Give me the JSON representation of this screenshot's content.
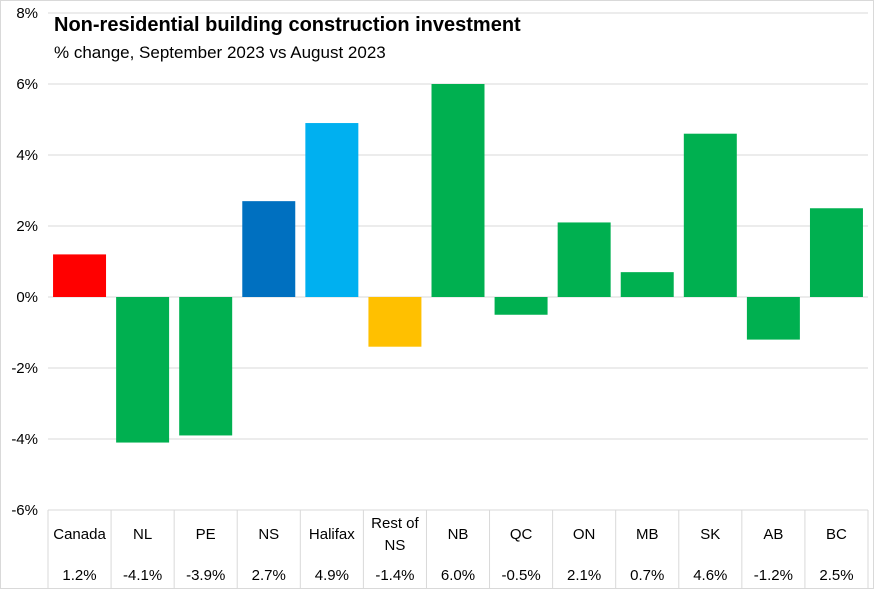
{
  "chart_data": {
    "type": "bar",
    "title": "Non-residential building construction investment",
    "subtitle": "% change, September 2023 vs August 2023",
    "categories": [
      [
        "Canada"
      ],
      [
        "NL"
      ],
      [
        "PE"
      ],
      [
        "NS"
      ],
      [
        "Halifax"
      ],
      [
        "Rest of",
        "NS"
      ],
      [
        "NB"
      ],
      [
        "QC"
      ],
      [
        "ON"
      ],
      [
        "MB"
      ],
      [
        "SK"
      ],
      [
        "AB"
      ],
      [
        "BC"
      ]
    ],
    "values": [
      1.2,
      -4.1,
      -3.9,
      2.7,
      4.9,
      -1.4,
      6.0,
      -0.5,
      2.1,
      0.7,
      4.6,
      -1.2,
      2.5
    ],
    "value_labels": [
      "1.2%",
      "-4.1%",
      "-3.9%",
      "2.7%",
      "4.9%",
      "-1.4%",
      "6.0%",
      "-0.5%",
      "2.1%",
      "0.7%",
      "4.6%",
      "-1.2%",
      "2.5%"
    ],
    "colors": [
      "#ff0000",
      "#00b050",
      "#00b050",
      "#0070c0",
      "#00b0f0",
      "#ffc000",
      "#00b050",
      "#00b050",
      "#00b050",
      "#00b050",
      "#00b050",
      "#00b050",
      "#00b050"
    ],
    "ylim": [
      -6,
      8
    ],
    "yticks": [
      -6,
      -4,
      -2,
      0,
      2,
      4,
      6,
      8
    ],
    "ytick_labels": [
      "-6%",
      "-4%",
      "-2%",
      "0%",
      "2%",
      "4%",
      "6%",
      "8%"
    ],
    "grid": true,
    "legend": "none",
    "colors_meta": {
      "gridline": "#d9d9d9",
      "frame": "#d9d9d9"
    }
  }
}
